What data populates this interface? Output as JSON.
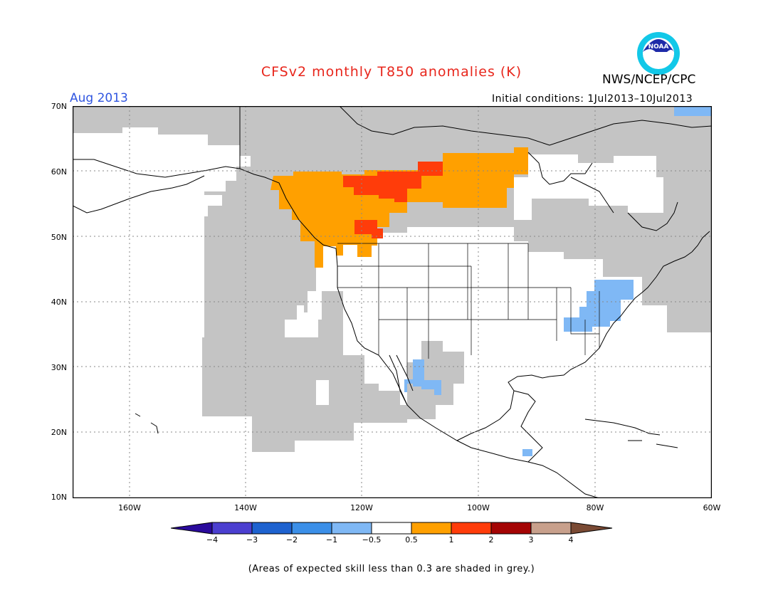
{
  "title": "CFSv2 monthly T850 anomalies (K)",
  "org": "NWS/NCEP/CPC",
  "month": "Aug 2013",
  "initial_conditions": "Initial conditions: 1Jul2013–10Jul2013",
  "note": "(Areas of expected skill less than 0.3 are shaded in grey.)",
  "logo": {
    "icon": "noaa-logo",
    "text": "NOAA"
  },
  "lat_labels": [
    "70N",
    "60N",
    "50N",
    "40N",
    "30N",
    "20N",
    "10N"
  ],
  "lon_labels": [
    "160W",
    "140W",
    "120W",
    "100W",
    "80W",
    "60W"
  ],
  "colorbar": {
    "ticks": [
      "−4",
      "−3",
      "−2",
      "−1",
      "−0.5",
      "0.5",
      "1",
      "2",
      "3",
      "4"
    ],
    "colors": [
      "#2a0a9c",
      "#4b3fd0",
      "#1e62cf",
      "#3b8fe8",
      "#7fb8f5",
      "#ffffff",
      "#ffa000",
      "#ff3c0a",
      "#a40404",
      "#c8a08c",
      "#7a4a34"
    ]
  },
  "colors": {
    "title": "#e8261c",
    "month": "#2f55e0",
    "grey_skill": "#c4c4c4",
    "pos_0_5_to_1": "#ffa000",
    "pos_1_to_2": "#ff3c0a",
    "neg_0_5_to_1": "#7fb8f5"
  }
}
